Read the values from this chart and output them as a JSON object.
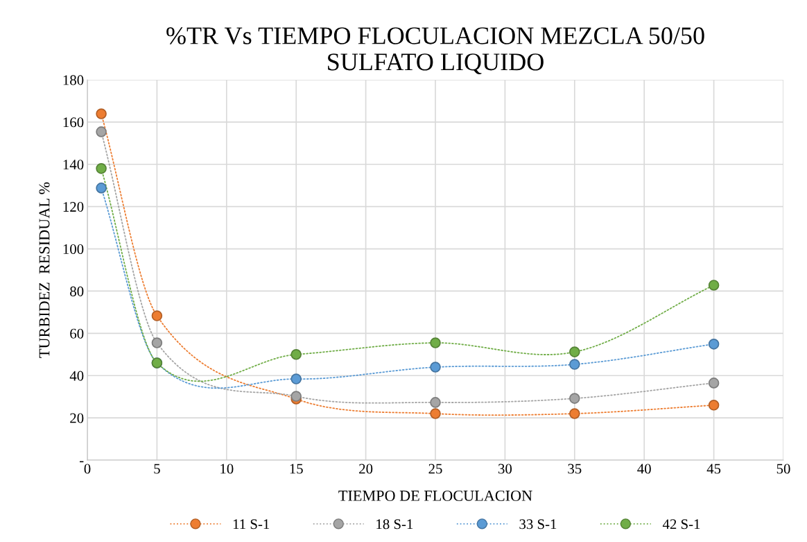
{
  "chart_data": {
    "type": "line",
    "title": "%TR Vs TIEMPO FLOCULACION MEZCLA 50/50\nSULFATO LIQUIDO",
    "xlabel": "TIEMPO DE FLOCULACION",
    "ylabel": "TURBIDEZ  RESIDUAL %",
    "x": [
      1,
      5,
      15,
      25,
      35,
      45
    ],
    "series": [
      {
        "name": "11 S-1",
        "color": "#ed7d31",
        "values": [
          163.9,
          68.3,
          28.9,
          22,
          22,
          26
        ]
      },
      {
        "name": "18 S-1",
        "color": "#a5a5a5",
        "values": [
          155.4,
          55.5,
          30.2,
          27.3,
          29.2,
          36.5
        ]
      },
      {
        "name": "33 S-1",
        "color": "#5b9bd5",
        "values": [
          128.8,
          46,
          38.4,
          44,
          45.3,
          54.9
        ]
      },
      {
        "name": "42 S-1",
        "color": "#70ad47",
        "values": [
          138,
          46,
          50,
          55.5,
          51.2,
          82.8
        ]
      }
    ],
    "xlim": [
      0,
      50
    ],
    "xticks": [
      0,
      5,
      10,
      15,
      20,
      25,
      30,
      35,
      40,
      45,
      50
    ],
    "ylim": [
      0,
      180
    ],
    "yticks": [
      {
        "value": 0,
        "label": "-"
      },
      20,
      40,
      60,
      80,
      100,
      120,
      140,
      160,
      180
    ],
    "grid": true,
    "legend": "bottom",
    "marker": "circle",
    "line_style": "dotted"
  }
}
